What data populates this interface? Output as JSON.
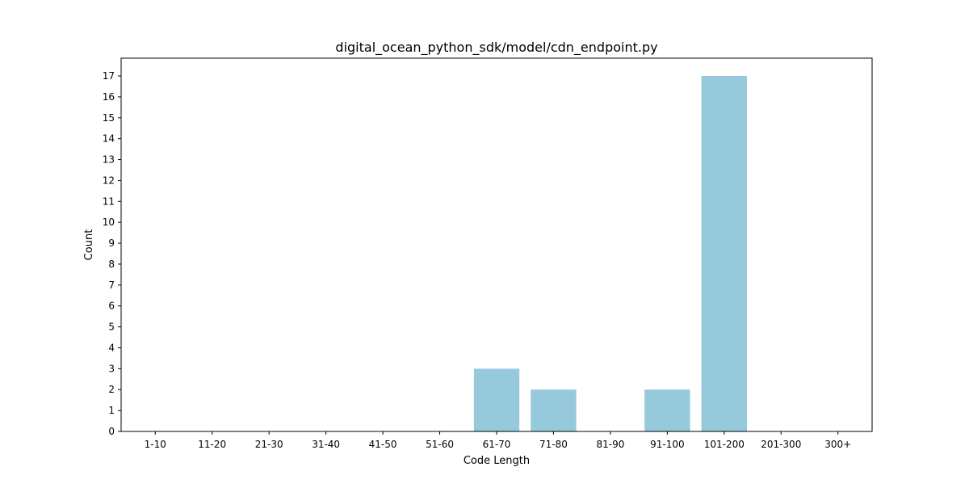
{
  "chart_data": {
    "type": "bar",
    "title": "digital_ocean_python_sdk/model/cdn_endpoint.py",
    "xlabel": "Code Length",
    "ylabel": "Count",
    "categories": [
      "1-10",
      "11-20",
      "21-30",
      "31-40",
      "41-50",
      "51-60",
      "61-70",
      "71-80",
      "81-90",
      "91-100",
      "101-200",
      "201-300",
      "300+"
    ],
    "values": [
      0,
      0,
      0,
      0,
      0,
      0,
      3,
      2,
      0,
      2,
      17,
      0,
      0
    ],
    "ylim": [
      0,
      17.85
    ],
    "yticks": [
      0,
      1,
      2,
      3,
      4,
      5,
      6,
      7,
      8,
      9,
      10,
      11,
      12,
      13,
      14,
      15,
      16,
      17
    ],
    "bar_color": "#96c9dc",
    "grid": false,
    "legend": "none"
  }
}
